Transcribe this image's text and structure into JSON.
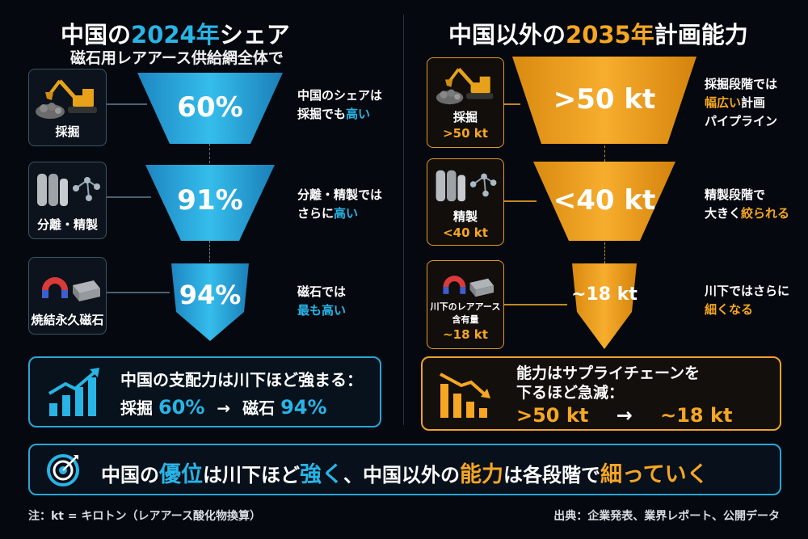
{
  "left": {
    "title_prefix": "中国の",
    "title_highlight": "2024年",
    "title_suffix": "シェア",
    "subtitle": "磁石用レアアース供給網全体で",
    "stages": [
      {
        "label": "採掘",
        "value": "60%",
        "note_l1": "中国のシェアは",
        "note_l2a": "採掘でも",
        "note_l2b": "高い"
      },
      {
        "label": "分離・精製",
        "value": "91%",
        "note_l1": "分離・精製では",
        "note_l2a": "さらに",
        "note_l2b": "高い"
      },
      {
        "label": "焼結永久磁石",
        "value": "94%",
        "note_l1": "磁石では",
        "note_l2a": "",
        "note_l2b": "最も高い"
      }
    ],
    "summary_l1": "中国の支配力は川下ほど強まる：",
    "summary_a_label": "採掘",
    "summary_a_value": "60%",
    "summary_arrow": "→",
    "summary_b_label": "磁石",
    "summary_b_value": "94%"
  },
  "right": {
    "title_prefix": "中国以外の",
    "title_highlight": "2035年",
    "title_suffix": "計画能力",
    "stages": [
      {
        "label_l1": "採掘",
        "label_l2": ">50 kt",
        "value": ">50 kt",
        "note_l1": "採掘段階では",
        "note_l2a": "幅広い",
        "note_l2b": "計画",
        "note_l3": "パイプライン"
      },
      {
        "label_l1": "精製",
        "label_l2": "<40 kt",
        "value": "<40 kt",
        "note_l1": "精製段階で",
        "note_l2a": "大きく",
        "note_l2b": "絞られる"
      },
      {
        "label_l1": "川下のレアアース",
        "label_l1b": "含有量",
        "label_l2": "~18 kt",
        "value": "~18 kt",
        "note_l1": "川下ではさらに",
        "note_l2a": "",
        "note_l2b": "細くなる"
      }
    ],
    "summary_l1": "能力はサプライチェーンを",
    "summary_l2": "下るほど急減：",
    "summary_a": ">50 kt",
    "summary_arrow": "→",
    "summary_b": "~18 kt"
  },
  "banner": {
    "p1": "中国の",
    "p2": "優位",
    "p3": "は川下ほど",
    "p4": "強く",
    "p5": "、中国以外の",
    "p6": "能力",
    "p7": "は各段階で",
    "p8": "細っていく"
  },
  "footer": {
    "note": "注：kt = キロトン（レアアース酸化物換算）",
    "source": "出典：企業発表、業界レポート、公開データ"
  },
  "colors": {
    "blue": "#29b4e6",
    "orange": "#f6a623",
    "background": "#05090f"
  }
}
